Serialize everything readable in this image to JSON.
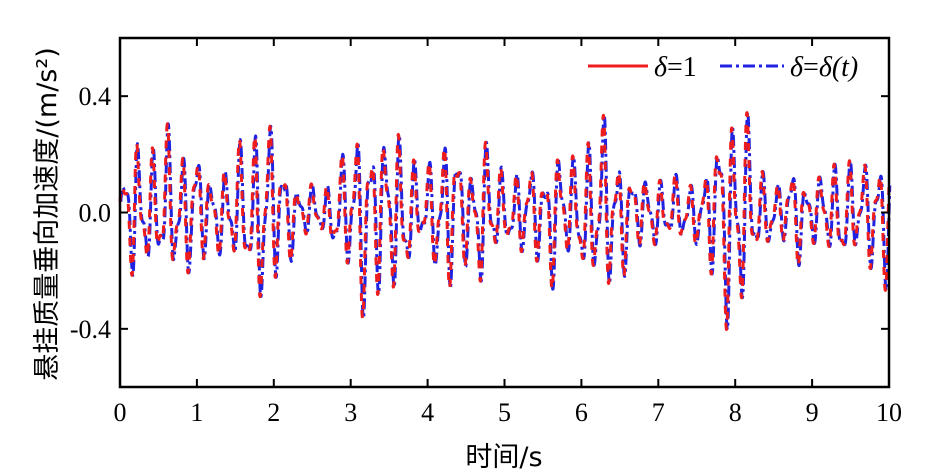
{
  "chart_data": {
    "type": "line",
    "title": "",
    "xlabel": "时间/s",
    "ylabel": "悬挂质量垂向加速度/(m/s²)",
    "xlim": [
      0,
      10
    ],
    "ylim": [
      -0.6,
      0.6
    ],
    "x_ticks": [
      0,
      1,
      2,
      3,
      4,
      5,
      6,
      7,
      8,
      9,
      10
    ],
    "x_tick_labels": [
      "0",
      "1",
      "2",
      "3",
      "4",
      "5",
      "6",
      "7",
      "8",
      "9",
      "10"
    ],
    "y_ticks": [
      -0.4,
      0.0,
      0.4
    ],
    "y_tick_labels": [
      "-0.4",
      "0.0",
      "0.4"
    ],
    "grid": false,
    "legend_position": "top-right",
    "series": [
      {
        "name": "δ=1",
        "legend_label": {
          "main": "δ",
          "eq": "=1",
          "tail": ""
        },
        "color": "#ee1c1c",
        "style": "solid",
        "envelope": [
          [
            0.0,
            0.12
          ],
          [
            0.1,
            0.2
          ],
          [
            0.2,
            0.35
          ],
          [
            0.3,
            0.15
          ],
          [
            0.4,
            0.25
          ],
          [
            0.5,
            0.3
          ],
          [
            0.6,
            0.34
          ],
          [
            0.7,
            0.22
          ],
          [
            0.8,
            0.3
          ],
          [
            0.9,
            0.22
          ],
          [
            1.0,
            0.28
          ],
          [
            1.1,
            0.18
          ],
          [
            1.2,
            0.15
          ],
          [
            1.3,
            0.16
          ],
          [
            1.4,
            0.22
          ],
          [
            1.5,
            0.25
          ],
          [
            1.6,
            0.26
          ],
          [
            1.7,
            0.32
          ],
          [
            1.8,
            0.36
          ],
          [
            1.9,
            0.43
          ],
          [
            2.0,
            0.3
          ],
          [
            2.1,
            0.25
          ],
          [
            2.2,
            0.18
          ],
          [
            2.3,
            0.12
          ],
          [
            2.4,
            0.1
          ],
          [
            2.5,
            0.11
          ],
          [
            2.6,
            0.08
          ],
          [
            2.7,
            0.12
          ],
          [
            2.8,
            0.18
          ],
          [
            2.9,
            0.22
          ],
          [
            3.0,
            0.32
          ],
          [
            3.1,
            0.35
          ],
          [
            3.2,
            0.4
          ],
          [
            3.3,
            0.36
          ],
          [
            3.4,
            0.32
          ],
          [
            3.5,
            0.25
          ],
          [
            3.6,
            0.38
          ],
          [
            3.7,
            0.3
          ],
          [
            3.8,
            0.2
          ],
          [
            3.9,
            0.15
          ],
          [
            4.0,
            0.2
          ],
          [
            4.1,
            0.22
          ],
          [
            4.2,
            0.36
          ],
          [
            4.3,
            0.3
          ],
          [
            4.4,
            0.28
          ],
          [
            4.5,
            0.2
          ],
          [
            4.6,
            0.2
          ],
          [
            4.7,
            0.3
          ],
          [
            4.8,
            0.26
          ],
          [
            4.9,
            0.22
          ],
          [
            5.0,
            0.12
          ],
          [
            5.1,
            0.16
          ],
          [
            5.2,
            0.18
          ],
          [
            5.3,
            0.17
          ],
          [
            5.4,
            0.2
          ],
          [
            5.5,
            0.18
          ],
          [
            5.6,
            0.28
          ],
          [
            5.7,
            0.26
          ],
          [
            5.8,
            0.2
          ],
          [
            5.9,
            0.22
          ],
          [
            6.0,
            0.25
          ],
          [
            6.1,
            0.3
          ],
          [
            6.2,
            0.32
          ],
          [
            6.3,
            0.37
          ],
          [
            6.4,
            0.3
          ],
          [
            6.5,
            0.25
          ],
          [
            6.6,
            0.2
          ],
          [
            6.7,
            0.16
          ],
          [
            6.8,
            0.14
          ],
          [
            6.9,
            0.12
          ],
          [
            7.0,
            0.15
          ],
          [
            7.1,
            0.12
          ],
          [
            7.2,
            0.13
          ],
          [
            7.3,
            0.14
          ],
          [
            7.4,
            0.13
          ],
          [
            7.5,
            0.12
          ],
          [
            7.6,
            0.16
          ],
          [
            7.7,
            0.28
          ],
          [
            7.8,
            0.38
          ],
          [
            7.9,
            0.44
          ],
          [
            8.0,
            0.48
          ],
          [
            8.1,
            0.42
          ],
          [
            8.2,
            0.3
          ],
          [
            8.3,
            0.2
          ],
          [
            8.4,
            0.14
          ],
          [
            8.5,
            0.12
          ],
          [
            8.6,
            0.12
          ],
          [
            8.7,
            0.18
          ],
          [
            8.8,
            0.2
          ],
          [
            8.9,
            0.16
          ],
          [
            9.0,
            0.12
          ],
          [
            9.1,
            0.15
          ],
          [
            9.2,
            0.18
          ],
          [
            9.3,
            0.2
          ],
          [
            9.4,
            0.22
          ],
          [
            9.5,
            0.2
          ],
          [
            9.6,
            0.18
          ],
          [
            9.7,
            0.2
          ],
          [
            9.8,
            0.24
          ],
          [
            9.9,
            0.28
          ],
          [
            10.0,
            0.3
          ]
        ]
      },
      {
        "name": "δ=δ(t)",
        "legend_label": {
          "main": "δ",
          "eq": "=",
          "tail": "δ(t)"
        },
        "color": "#1f22e0",
        "style": "dashdot"
      }
    ]
  }
}
